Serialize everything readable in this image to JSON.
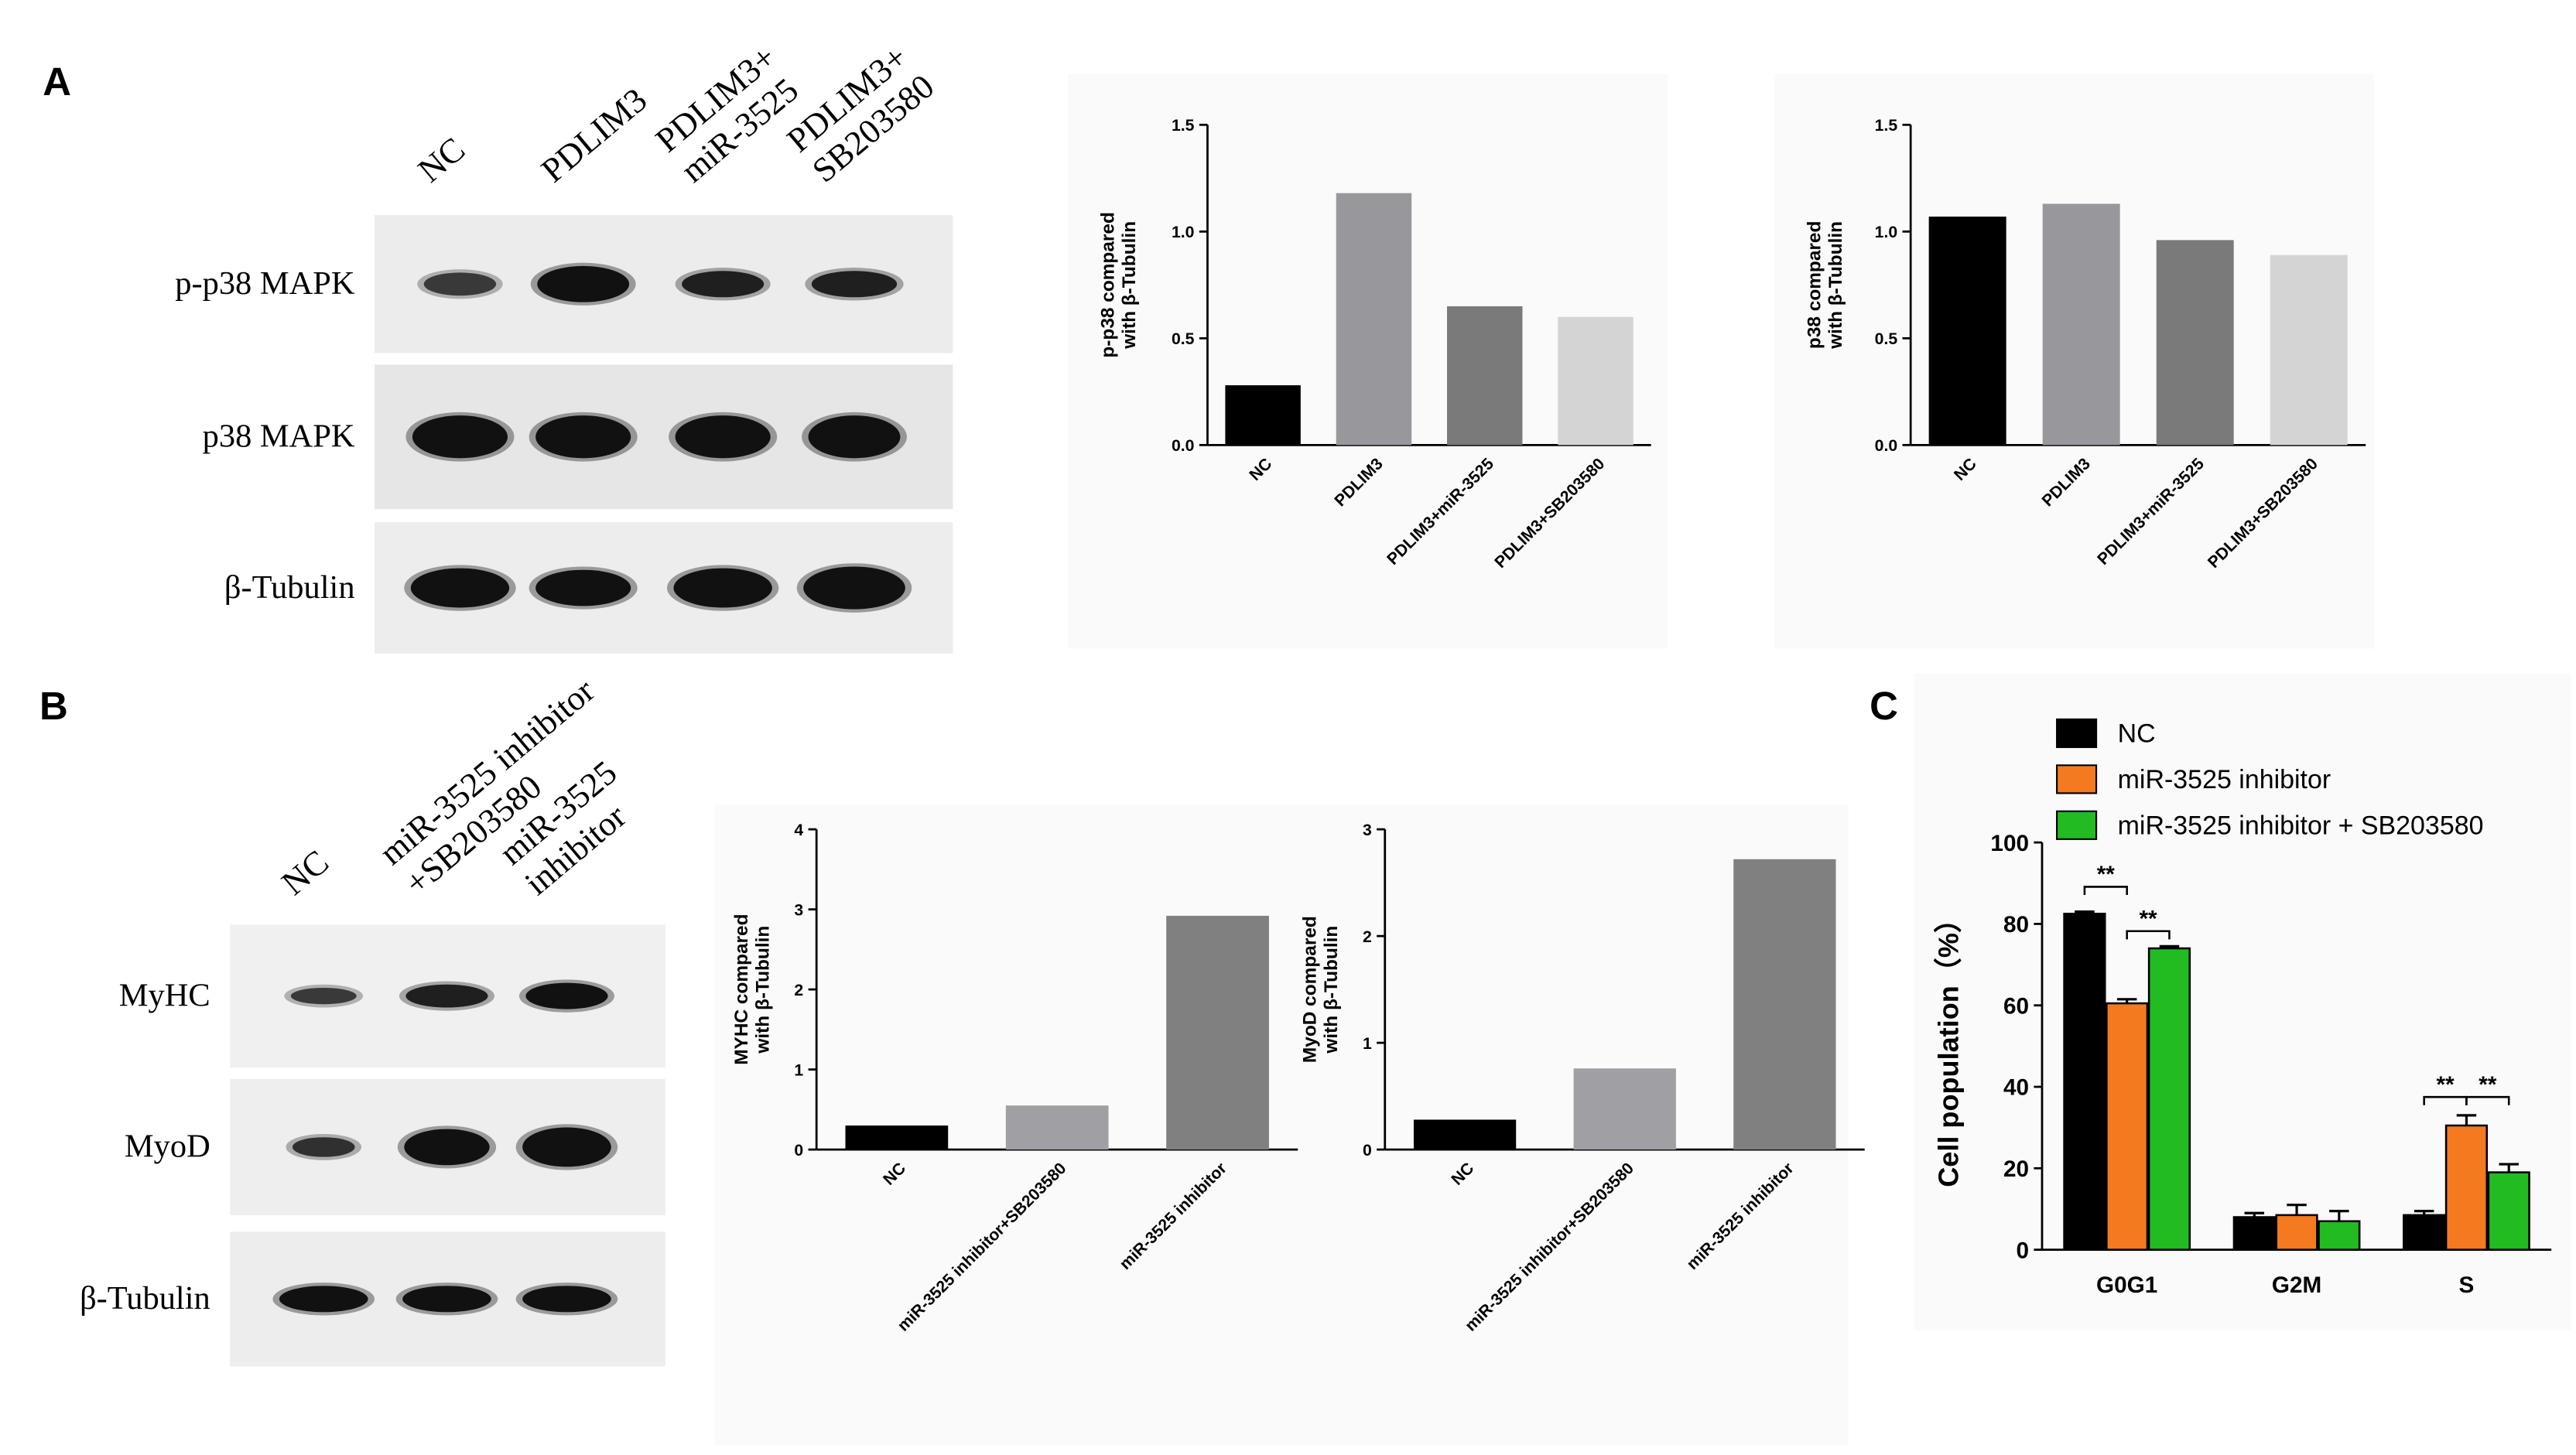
{
  "panels": {
    "a": {
      "letter": "A",
      "lanes": [
        [
          "NC"
        ],
        [
          "PDLIM3"
        ],
        [
          "PDLIM3+",
          "miR-3525"
        ],
        [
          "PDLIM3+",
          "SB203580"
        ]
      ],
      "rows": [
        "p-p38 MAPK",
        "p38 MAPK",
        "β-Tubulin"
      ]
    },
    "b": {
      "letter": "B",
      "lanes": [
        [
          "NC"
        ],
        [
          "miR-3525 inhibitor",
          "+SB203580"
        ],
        [
          "miR-3525",
          "inhibitor"
        ]
      ],
      "rows": [
        "MyHC",
        "MyoD",
        "β-Tubulin"
      ]
    },
    "c": {
      "letter": "C"
    }
  },
  "chart_data": [
    {
      "type": "bar",
      "y_label": [
        "p-p38 compared",
        "with β-Tubulin"
      ],
      "categories": [
        "NC",
        "PDLIM3",
        "PDLIM3+miR-3525",
        "PDLIM3+SB203580"
      ],
      "values": [
        0.28,
        1.18,
        0.65,
        0.6
      ],
      "colors": [
        "#000000",
        "#98989c",
        "#7a7a7a",
        "#d4d4d4"
      ],
      "ylim": [
        0,
        1.5
      ],
      "yticks": [
        {
          "value": 0,
          "label": "0.0"
        },
        {
          "value": 0.5,
          "label": "0.5"
        },
        {
          "value": 1,
          "label": "1.0"
        },
        {
          "value": 1.5,
          "label": "1.5"
        }
      ]
    },
    {
      "type": "bar",
      "y_label": [
        "p38 compared",
        "with β-Tubulin"
      ],
      "categories": [
        "NC",
        "PDLIM3",
        "PDLIM3+miR-3525",
        "PDLIM3+SB203580"
      ],
      "values": [
        1.07,
        1.13,
        0.96,
        0.89
      ],
      "colors": [
        "#000000",
        "#98989c",
        "#7a7a7a",
        "#d4d4d4"
      ],
      "ylim": [
        0,
        1.5
      ],
      "yticks": [
        {
          "value": 0,
          "label": "0.0"
        },
        {
          "value": 0.5,
          "label": "0.5"
        },
        {
          "value": 1,
          "label": "1.0"
        },
        {
          "value": 1.5,
          "label": "1.5"
        }
      ]
    },
    {
      "type": "bar",
      "y_label": [
        "MYHC compared",
        "with β-Tubulin"
      ],
      "categories": [
        "NC",
        "miR-3525 inhibitor+SB203580",
        "miR-3525 inhibitor"
      ],
      "values": [
        0.3,
        0.55,
        2.92
      ],
      "colors": [
        "#000000",
        "#a0a0a4",
        "#808080"
      ],
      "ylim": [
        0,
        4
      ],
      "yticks": [
        0,
        1,
        2,
        3,
        4
      ]
    },
    {
      "type": "bar",
      "y_label": [
        "MyoD compared",
        "with β-Tubulin"
      ],
      "categories": [
        "NC",
        "miR-3525 inhibitor+SB203580",
        "miR-3525 inhibitor"
      ],
      "values": [
        0.28,
        0.76,
        2.72
      ],
      "colors": [
        "#000000",
        "#a0a0a4",
        "#808080"
      ],
      "ylim": [
        0,
        3
      ],
      "yticks": [
        0,
        1,
        2,
        3
      ]
    },
    {
      "type": "grouped_bar",
      "y_label": [
        "Cell population（%）"
      ],
      "categories": [
        "G0G1",
        "G2M",
        "S"
      ],
      "series": [
        {
          "name": "NC",
          "color": "#000000",
          "values": [
            82.5,
            8,
            8.5
          ],
          "errors": [
            0.5,
            1,
            1
          ]
        },
        {
          "name": "miR-3525 inhibitor",
          "color": "#f47a20",
          "values": [
            60.5,
            8.5,
            30.5
          ],
          "errors": [
            1,
            2.5,
            2.5
          ]
        },
        {
          "name": "miR-3525 inhibitor + SB203580",
          "color": "#22bb22",
          "values": [
            74,
            7,
            19
          ],
          "errors": [
            0.5,
            2.5,
            2
          ]
        }
      ],
      "annotations": [
        "**",
        "**",
        "**",
        "**"
      ],
      "ylim": [
        0,
        100
      ],
      "yticks": [
        0,
        20,
        40,
        60,
        80,
        100
      ]
    }
  ]
}
